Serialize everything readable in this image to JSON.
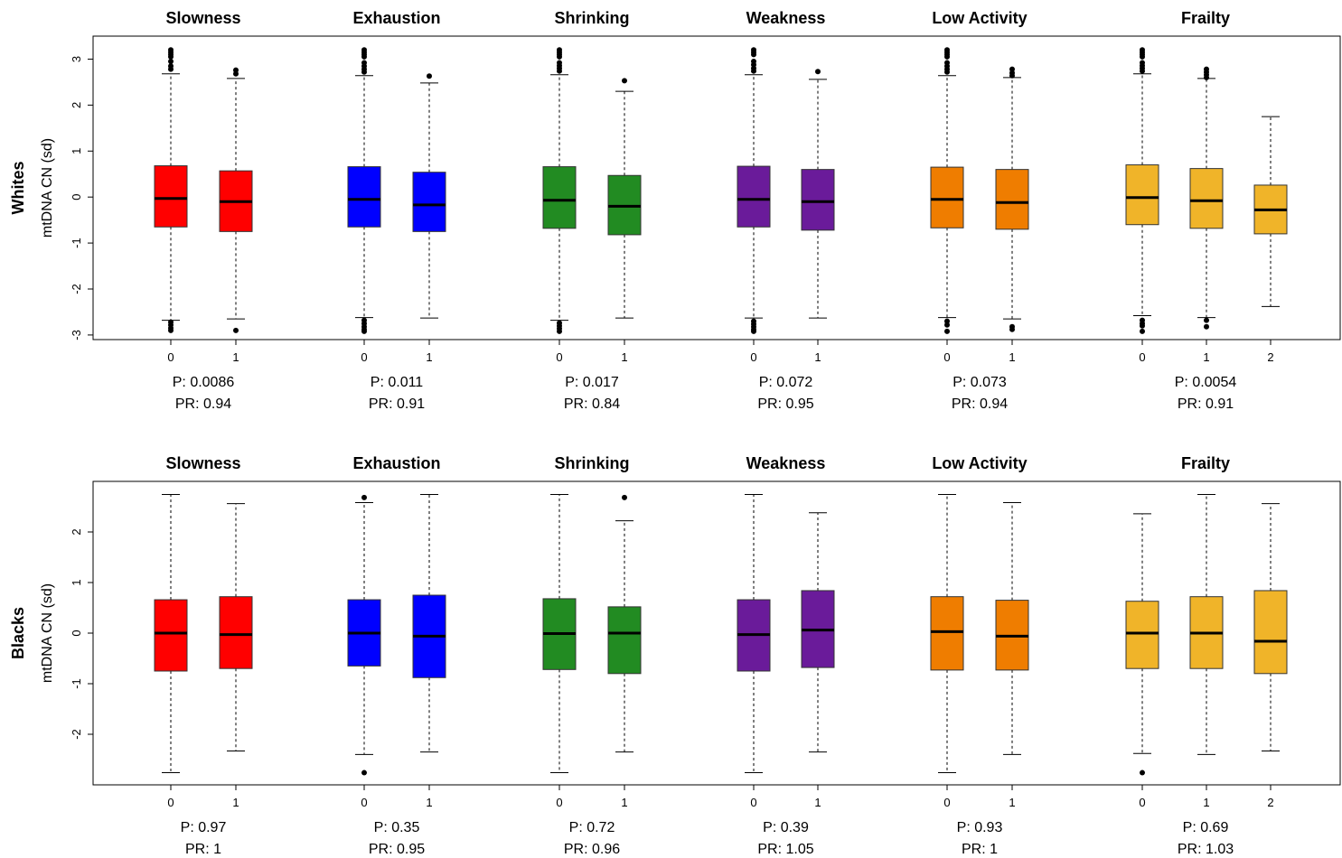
{
  "chart_data": {
    "type": "boxplot",
    "ylabel": "mtDNA CN (sd)",
    "panels": [
      {
        "label": "Whites",
        "ylim": [
          -3.1,
          3.5
        ],
        "yticks": [
          -3,
          -2,
          -1,
          0,
          1,
          2,
          3
        ],
        "groups": [
          {
            "title": "Slowness",
            "color": "#ff0000",
            "p": "P: 0.0086",
            "pr": "PR: 0.94",
            "boxes": [
              {
                "x": "0",
                "q1": -0.65,
                "median": -0.03,
                "q3": 0.68,
                "lo": -2.68,
                "hi": 2.68,
                "outliers": [
                  3.2,
                  3.15,
                  3.1,
                  3.05,
                  2.95,
                  2.85,
                  2.78,
                  -2.72,
                  -2.78,
                  -2.85,
                  -2.9
                ]
              },
              {
                "x": "1",
                "q1": -0.75,
                "median": -0.1,
                "q3": 0.57,
                "lo": -2.65,
                "hi": 2.58,
                "outliers": [
                  2.76,
                  2.68,
                  -2.9
                ]
              }
            ]
          },
          {
            "title": "Exhaustion",
            "color": "#0000ff",
            "p": "P: 0.011",
            "pr": "PR: 0.91",
            "boxes": [
              {
                "x": "0",
                "q1": -0.65,
                "median": -0.05,
                "q3": 0.66,
                "lo": -2.62,
                "hi": 2.64,
                "outliers": [
                  3.2,
                  3.15,
                  3.1,
                  3.05,
                  2.92,
                  2.85,
                  2.78,
                  2.72,
                  -2.68,
                  -2.75,
                  -2.82,
                  -2.88,
                  -2.92
                ]
              },
              {
                "x": "1",
                "q1": -0.75,
                "median": -0.17,
                "q3": 0.54,
                "lo": -2.63,
                "hi": 2.48,
                "outliers": [
                  2.63
                ]
              }
            ]
          },
          {
            "title": "Shrinking",
            "color": "#228b22",
            "p": "P: 0.017",
            "pr": "PR: 0.84",
            "boxes": [
              {
                "x": "0",
                "q1": -0.68,
                "median": -0.07,
                "q3": 0.66,
                "lo": -2.68,
                "hi": 2.66,
                "outliers": [
                  3.2,
                  3.15,
                  3.1,
                  3.05,
                  2.92,
                  2.86,
                  2.8,
                  2.74,
                  -2.74,
                  -2.8,
                  -2.86,
                  -2.92
                ]
              },
              {
                "x": "1",
                "q1": -0.82,
                "median": -0.2,
                "q3": 0.47,
                "lo": -2.63,
                "hi": 2.3,
                "outliers": [
                  2.53
                ]
              }
            ]
          },
          {
            "title": "Weakness",
            "color": "#6a1b9a",
            "p": "P: 0.072",
            "pr": "PR: 0.95",
            "boxes": [
              {
                "x": "0",
                "q1": -0.65,
                "median": -0.05,
                "q3": 0.67,
                "lo": -2.63,
                "hi": 2.66,
                "outliers": [
                  3.2,
                  3.15,
                  3.1,
                  2.95,
                  2.88,
                  2.8,
                  2.74,
                  -2.7,
                  -2.76,
                  -2.82,
                  -2.88,
                  -2.92
                ]
              },
              {
                "x": "1",
                "q1": -0.72,
                "median": -0.1,
                "q3": 0.6,
                "lo": -2.63,
                "hi": 2.56,
                "outliers": [
                  2.73
                ]
              }
            ]
          },
          {
            "title": "Low Activity",
            "color": "#ef7d00",
            "p": "P: 0.073",
            "pr": "PR: 0.94",
            "boxes": [
              {
                "x": "0",
                "q1": -0.67,
                "median": -0.05,
                "q3": 0.65,
                "lo": -2.62,
                "hi": 2.64,
                "outliers": [
                  3.2,
                  3.15,
                  3.1,
                  3.05,
                  2.92,
                  2.85,
                  2.78,
                  2.72,
                  -2.7,
                  -2.78,
                  -2.92
                ]
              },
              {
                "x": "1",
                "q1": -0.7,
                "median": -0.12,
                "q3": 0.6,
                "lo": -2.65,
                "hi": 2.6,
                "outliers": [
                  2.78,
                  2.7,
                  2.64,
                  -2.82,
                  -2.88
                ]
              }
            ]
          },
          {
            "title": "Frailty",
            "color": "#f0b429",
            "p": "P: 0.0054",
            "pr": "PR: 0.91",
            "boxes": [
              {
                "x": "0",
                "q1": -0.6,
                "median": -0.01,
                "q3": 0.7,
                "lo": -2.58,
                "hi": 2.68,
                "outliers": [
                  3.2,
                  3.15,
                  3.1,
                  3.05,
                  2.92,
                  2.86,
                  2.8,
                  2.74,
                  -2.68,
                  -2.75,
                  -2.8,
                  -2.92
                ]
              },
              {
                "x": "1",
                "q1": -0.68,
                "median": -0.08,
                "q3": 0.62,
                "lo": -2.62,
                "hi": 2.58,
                "outliers": [
                  2.78,
                  2.72,
                  2.66,
                  2.6,
                  -2.68,
                  -2.82
                ]
              },
              {
                "x": "2",
                "q1": -0.8,
                "median": -0.28,
                "q3": 0.26,
                "lo": -2.38,
                "hi": 1.75,
                "outliers": []
              }
            ]
          }
        ]
      },
      {
        "label": "Blacks",
        "ylim": [
          -3.0,
          3.0
        ],
        "yticks": [
          -2,
          -1,
          0,
          1,
          2
        ],
        "groups": [
          {
            "title": "Slowness",
            "color": "#ff0000",
            "p": "P: 0.97",
            "pr": "PR: 1",
            "boxes": [
              {
                "x": "0",
                "q1": -0.75,
                "median": 0.0,
                "q3": 0.66,
                "lo": -2.76,
                "hi": 2.74,
                "outliers": []
              },
              {
                "x": "1",
                "q1": -0.7,
                "median": -0.03,
                "q3": 0.72,
                "lo": -2.33,
                "hi": 2.56,
                "outliers": []
              }
            ]
          },
          {
            "title": "Exhaustion",
            "color": "#0000ff",
            "p": "P: 0.35",
            "pr": "PR: 0.95",
            "boxes": [
              {
                "x": "0",
                "q1": -0.65,
                "median": 0.0,
                "q3": 0.66,
                "lo": -2.4,
                "hi": 2.58,
                "outliers": [
                  2.68,
                  -2.76
                ]
              },
              {
                "x": "1",
                "q1": -0.88,
                "median": -0.06,
                "q3": 0.75,
                "lo": -2.35,
                "hi": 2.74,
                "outliers": []
              }
            ]
          },
          {
            "title": "Shrinking",
            "color": "#228b22",
            "p": "P: 0.72",
            "pr": "PR: 0.96",
            "boxes": [
              {
                "x": "0",
                "q1": -0.72,
                "median": -0.01,
                "q3": 0.68,
                "lo": -2.76,
                "hi": 2.74,
                "outliers": []
              },
              {
                "x": "1",
                "q1": -0.8,
                "median": 0.0,
                "q3": 0.52,
                "lo": -2.35,
                "hi": 2.22,
                "outliers": [
                  2.68
                ]
              }
            ]
          },
          {
            "title": "Weakness",
            "color": "#6a1b9a",
            "p": "P: 0.39",
            "pr": "PR: 1.05",
            "boxes": [
              {
                "x": "0",
                "q1": -0.75,
                "median": -0.03,
                "q3": 0.66,
                "lo": -2.76,
                "hi": 2.74,
                "outliers": []
              },
              {
                "x": "1",
                "q1": -0.68,
                "median": 0.06,
                "q3": 0.84,
                "lo": -2.35,
                "hi": 2.38,
                "outliers": []
              }
            ]
          },
          {
            "title": "Low Activity",
            "color": "#ef7d00",
            "p": "P: 0.93",
            "pr": "PR: 1",
            "boxes": [
              {
                "x": "0",
                "q1": -0.73,
                "median": 0.03,
                "q3": 0.72,
                "lo": -2.76,
                "hi": 2.74,
                "outliers": []
              },
              {
                "x": "1",
                "q1": -0.73,
                "median": -0.06,
                "q3": 0.65,
                "lo": -2.4,
                "hi": 2.58,
                "outliers": []
              }
            ]
          },
          {
            "title": "Frailty",
            "color": "#f0b429",
            "p": "P: 0.69",
            "pr": "PR: 1.03",
            "boxes": [
              {
                "x": "0",
                "q1": -0.7,
                "median": 0.0,
                "q3": 0.63,
                "lo": -2.38,
                "hi": 2.36,
                "outliers": [
                  -2.76
                ]
              },
              {
                "x": "1",
                "q1": -0.7,
                "median": 0.0,
                "q3": 0.72,
                "lo": -2.4,
                "hi": 2.74,
                "outliers": []
              },
              {
                "x": "2",
                "q1": -0.8,
                "median": -0.16,
                "q3": 0.84,
                "lo": -2.33,
                "hi": 2.56,
                "outliers": []
              }
            ]
          }
        ]
      }
    ]
  }
}
